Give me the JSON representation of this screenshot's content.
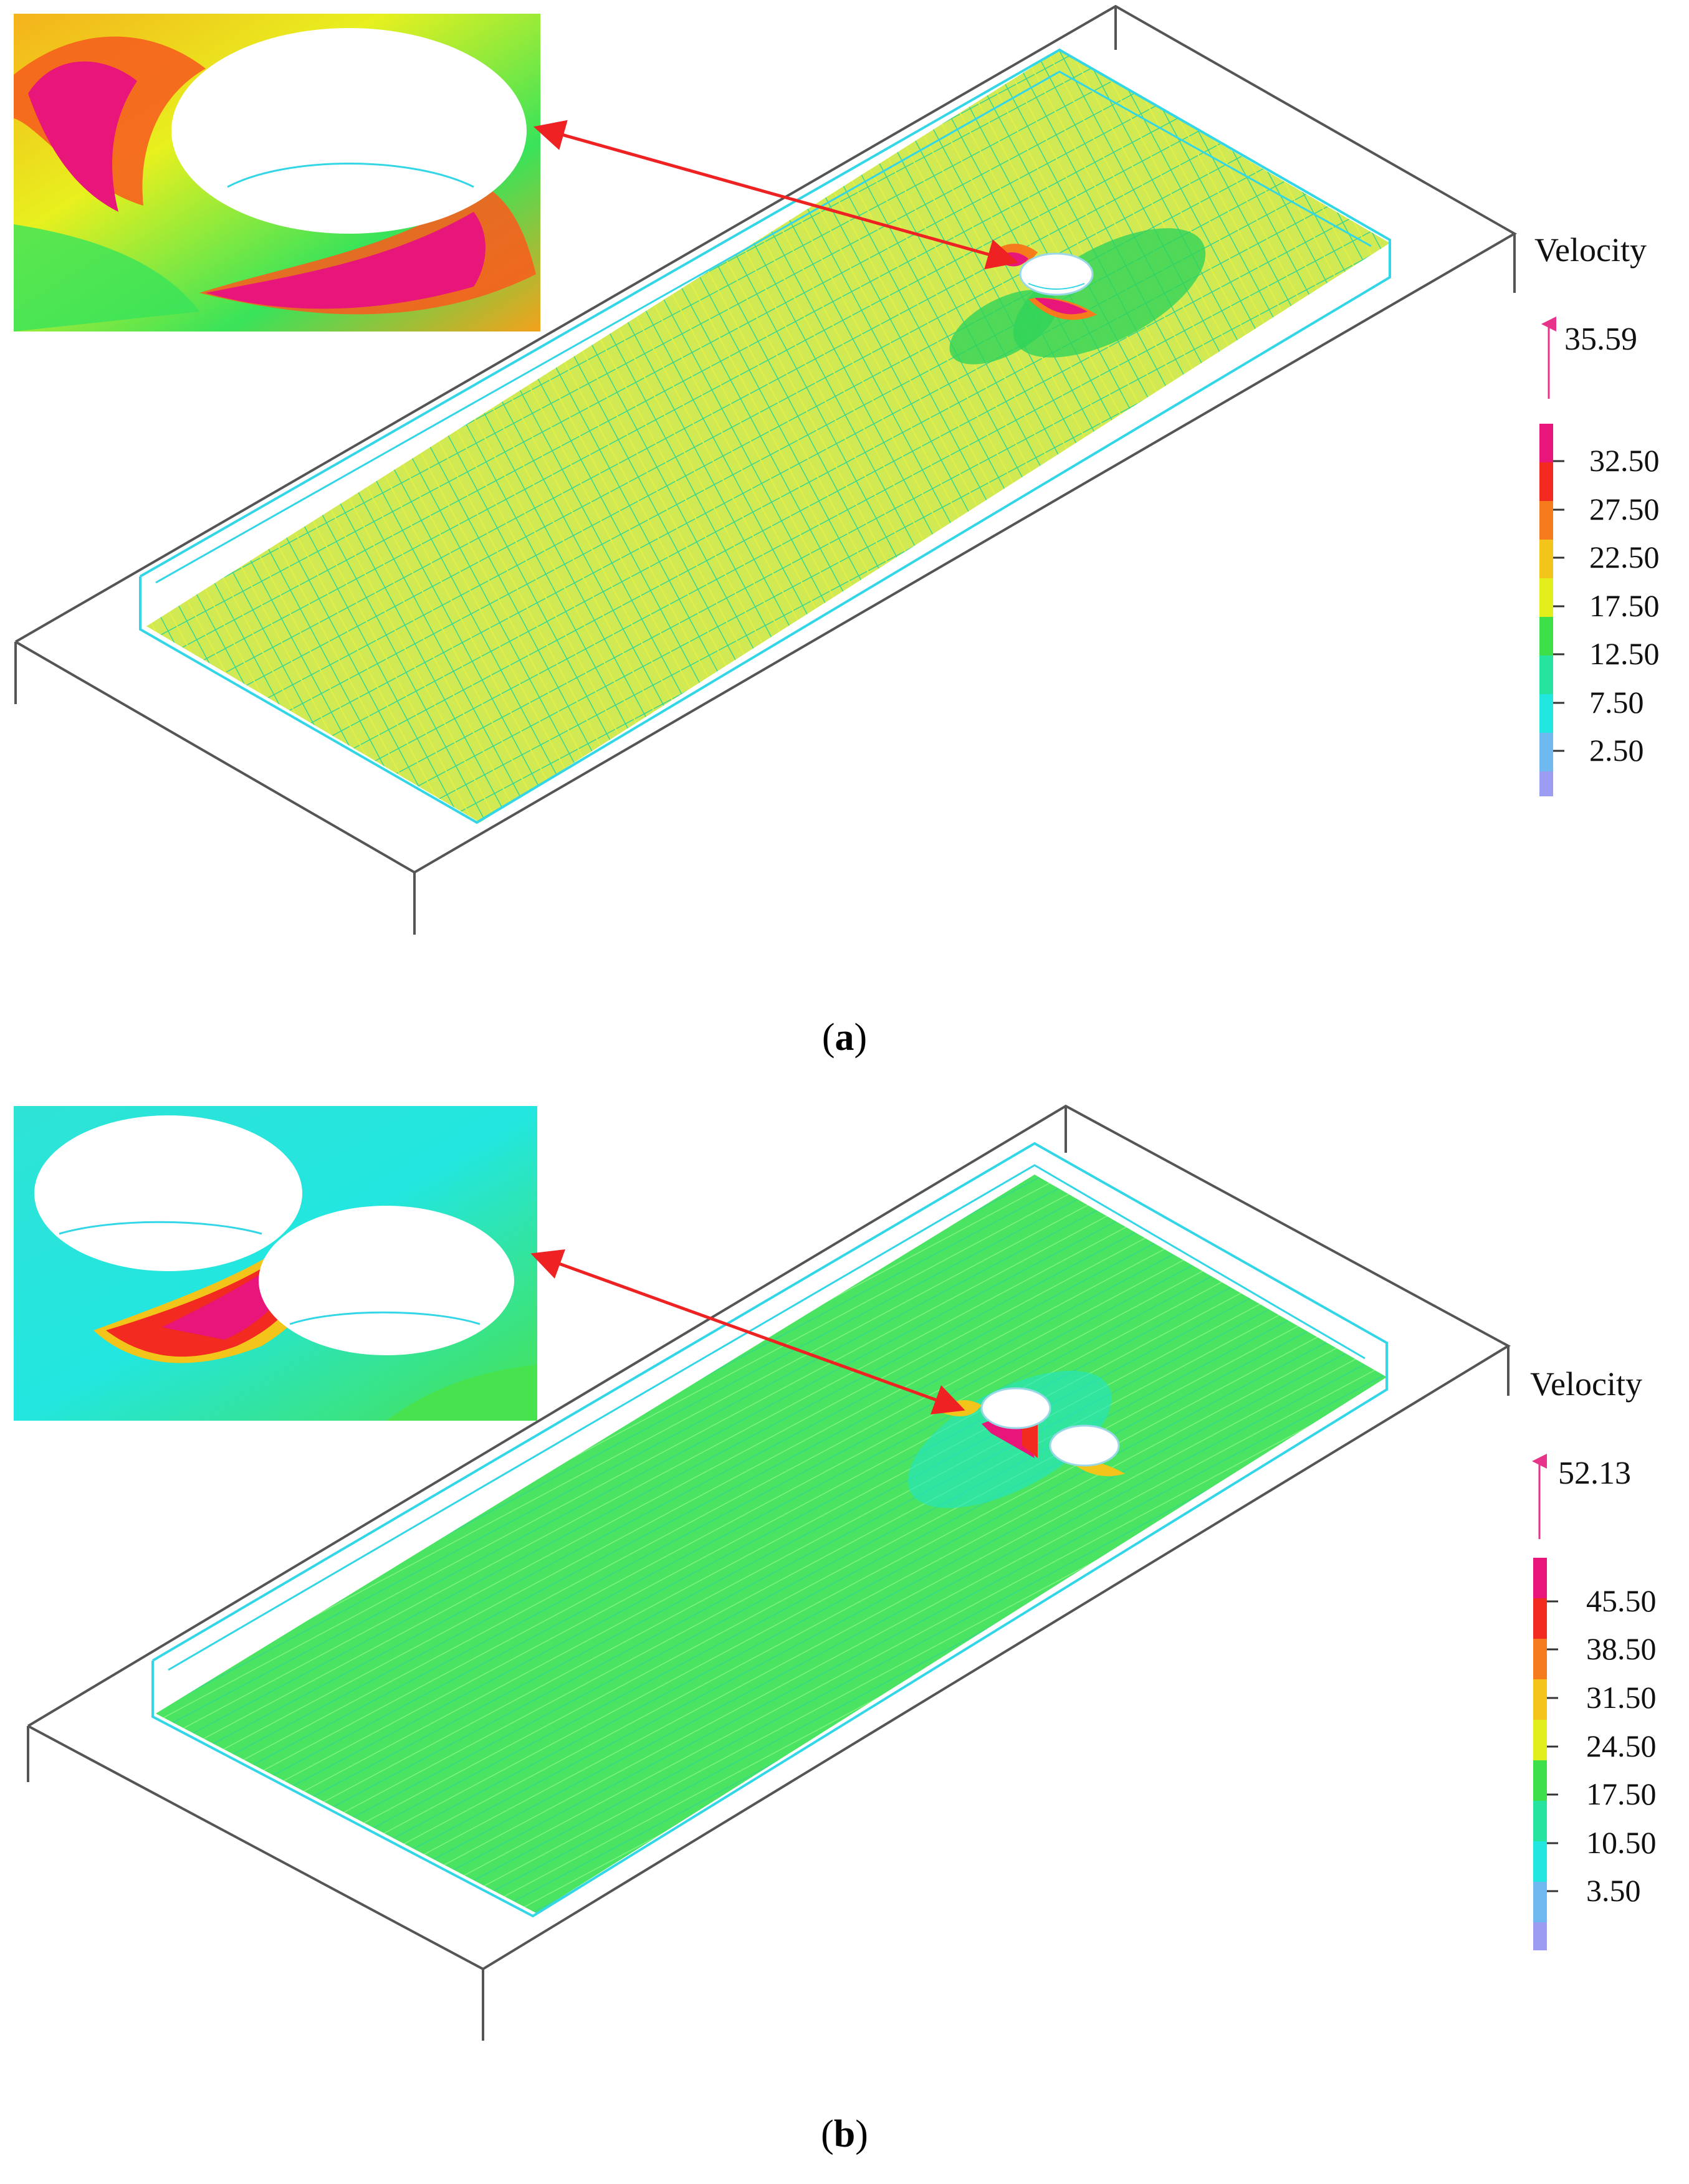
{
  "figure": {
    "panels": [
      {
        "id": "a",
        "caption_open": "(",
        "caption_letter": "a",
        "caption_close": ")",
        "legend": {
          "title": "Velocity",
          "max_value": "35.59",
          "ticks": [
            "32.50",
            "27.50",
            "22.50",
            "17.50",
            "12.50",
            "7.50",
            "2.50"
          ]
        },
        "holes": 1
      },
      {
        "id": "b",
        "caption_open": "(",
        "caption_letter": "b",
        "caption_close": ")",
        "legend": {
          "title": "Velocity",
          "max_value": "52.13",
          "ticks": [
            "45.50",
            "38.50",
            "31.50",
            "24.50",
            "17.50",
            "10.50",
            "3.50"
          ]
        },
        "holes": 2
      }
    ],
    "colors": {
      "frame": "#555555",
      "mesh_outline": "#33d6e6",
      "arrow": "#ee2222",
      "vector_arrow": "#e8338a",
      "colorbar": [
        "#e8157a",
        "#f22a20",
        "#f57b1c",
        "#f3c419",
        "#e3ef1c",
        "#3ee04a",
        "#27e3a0",
        "#22e6e0",
        "#6fb8f0",
        "#9c9cf3"
      ]
    }
  }
}
